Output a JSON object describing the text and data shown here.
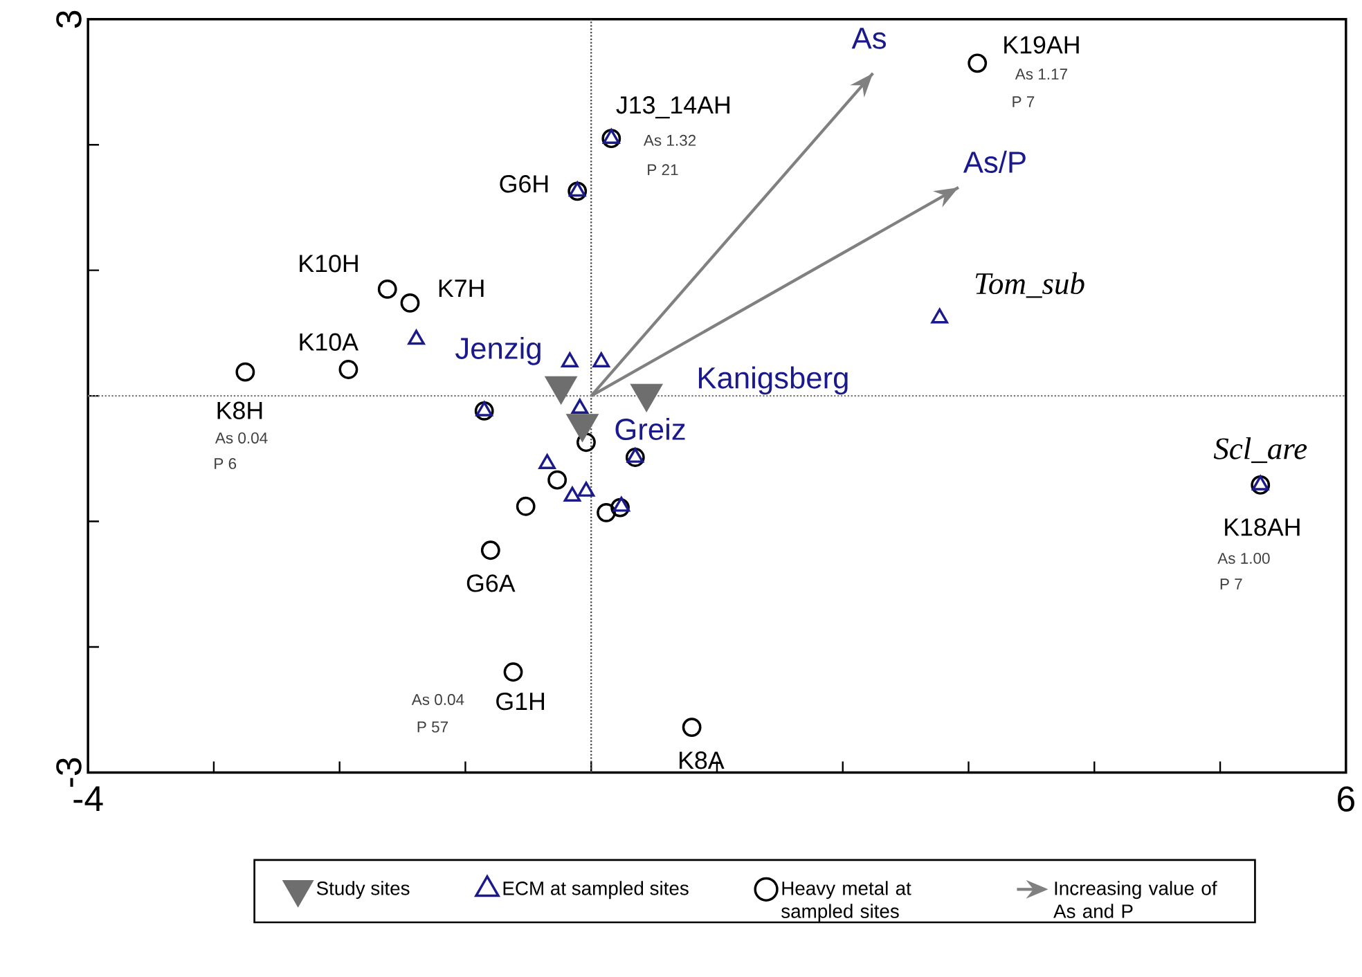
{
  "chart_data": {
    "type": "scatter",
    "xlim": [
      -4,
      6
    ],
    "ylim": [
      -3,
      3
    ],
    "xticks": [
      -4,
      {
        "value": -3,
        "label": null
      },
      {
        "value": -2,
        "label": null
      },
      {
        "value": -1,
        "label": null
      },
      {
        "value": 0,
        "label": null
      },
      {
        "value": 1,
        "label": null
      },
      {
        "value": 2,
        "label": null
      },
      {
        "value": 3,
        "label": null
      },
      {
        "value": 4,
        "label": null
      },
      {
        "value": 5,
        "label": null
      },
      6
    ],
    "yticks": [
      -3,
      {
        "value": -2,
        "label": null
      },
      {
        "value": -1,
        "label": null
      },
      {
        "value": 0,
        "label": null
      },
      {
        "value": 1,
        "label": null
      },
      {
        "value": 2,
        "label": null
      },
      3
    ],
    "grid": false,
    "legend": "bottom",
    "series": [
      {
        "name": "Study sites",
        "color": "#6e6e6e",
        "marker": "triangle",
        "x": [
          -0.24,
          -0.07,
          0.44
        ],
        "values": [
          0.08,
          -0.22,
          0.02
        ]
      },
      {
        "name": "ECM at sampled sites",
        "color": "#1a1a8c",
        "marker": "triangle",
        "x": [
          -1.39,
          -0.17,
          0.08,
          -0.09,
          -0.85,
          0.35,
          -0.35,
          -0.15,
          -0.04,
          0.24,
          0.16,
          -0.11,
          2.77,
          5.32
        ],
        "values": [
          0.45,
          0.27,
          0.27,
          -0.1,
          -0.12,
          -0.49,
          -0.54,
          -0.8,
          -0.76,
          -0.88,
          2.05,
          1.63,
          0.62,
          -0.71
        ]
      },
      {
        "name": "Heavy metal at sampled sites",
        "color": "#000000",
        "marker": "circle",
        "x": [
          3.07,
          0.16,
          -0.11,
          -1.62,
          -1.44,
          -1.93,
          -2.75,
          -0.85,
          -0.04,
          0.35,
          -0.27,
          -0.52,
          0.12,
          0.23,
          -0.8,
          -0.62,
          0.8,
          5.32
        ],
        "values": [
          2.65,
          2.05,
          1.63,
          0.85,
          0.74,
          0.21,
          0.19,
          -0.12,
          -0.37,
          -0.49,
          -0.67,
          -0.88,
          -0.93,
          -0.89,
          -1.23,
          -2.2,
          -2.64,
          -0.71
        ]
      },
      {
        "name": "Increasing value of As and P",
        "type": "line",
        "color": "#808080",
        "marker": "none",
        "line_style": "solid",
        "x": [
          0,
          2.24
        ],
        "values": [
          0,
          2.57
        ]
      },
      {
        "type": "line",
        "color": "#808080",
        "marker": "none",
        "line_style": "solid",
        "x": [
          0,
          2.92
        ],
        "values": [
          0,
          1.66
        ]
      }
    ],
    "ref_lines": [
      {
        "axis": "x",
        "value": 0,
        "color": "#444444",
        "line_style": "dotted"
      },
      {
        "axis": "y",
        "value": 0,
        "color": "#777777",
        "line_style": "dotted"
      }
    ],
    "annotations": [
      {
        "text": "K19AH",
        "x": 3.07,
        "y": 2.65
      },
      {
        "text": "J13_14AH",
        "x": 0.16,
        "y": 2.05
      },
      {
        "text": "G6H",
        "x": -0.11,
        "y": 1.63
      },
      {
        "text": "K10H",
        "x": -1.62,
        "y": 0.85
      },
      {
        "text": "K7H",
        "x": -1.44,
        "y": 0.74
      },
      {
        "text": "K10A",
        "x": -1.93,
        "y": 0.21
      },
      {
        "text": "K8H",
        "x": -2.75,
        "y": 0.19
      },
      {
        "text": "G6A",
        "x": -0.8,
        "y": -1.23
      },
      {
        "text": "G1H",
        "x": -0.62,
        "y": -2.2
      },
      {
        "text": "K8A",
        "x": 0.8,
        "y": -2.64
      },
      {
        "text": "K18AH",
        "x": 5.32,
        "y": -0.71
      },
      "As 1.17",
      "P 7",
      "As 1.32",
      "P 21",
      "As 0.04",
      "P 6",
      "As 0.04",
      "P 57",
      "As 1.00",
      "P 7",
      {
        "text": "Jenzig",
        "x": -0.24,
        "y": 0.08
      },
      {
        "text": "Kanigsberg",
        "x": 0.44,
        "y": 0.02
      },
      {
        "text": "Greiz",
        "x": -0.07,
        "y": -0.22
      },
      {
        "text": "Tom_sub",
        "x": 2.77,
        "y": 0.62
      },
      {
        "text": "Scl_are",
        "x": 5.32,
        "y": -0.71
      },
      {
        "text": "As",
        "x": 2.24,
        "y": 2.57
      },
      {
        "text": "As/P",
        "x": 2.92,
        "y": 1.66
      }
    ]
  }
}
